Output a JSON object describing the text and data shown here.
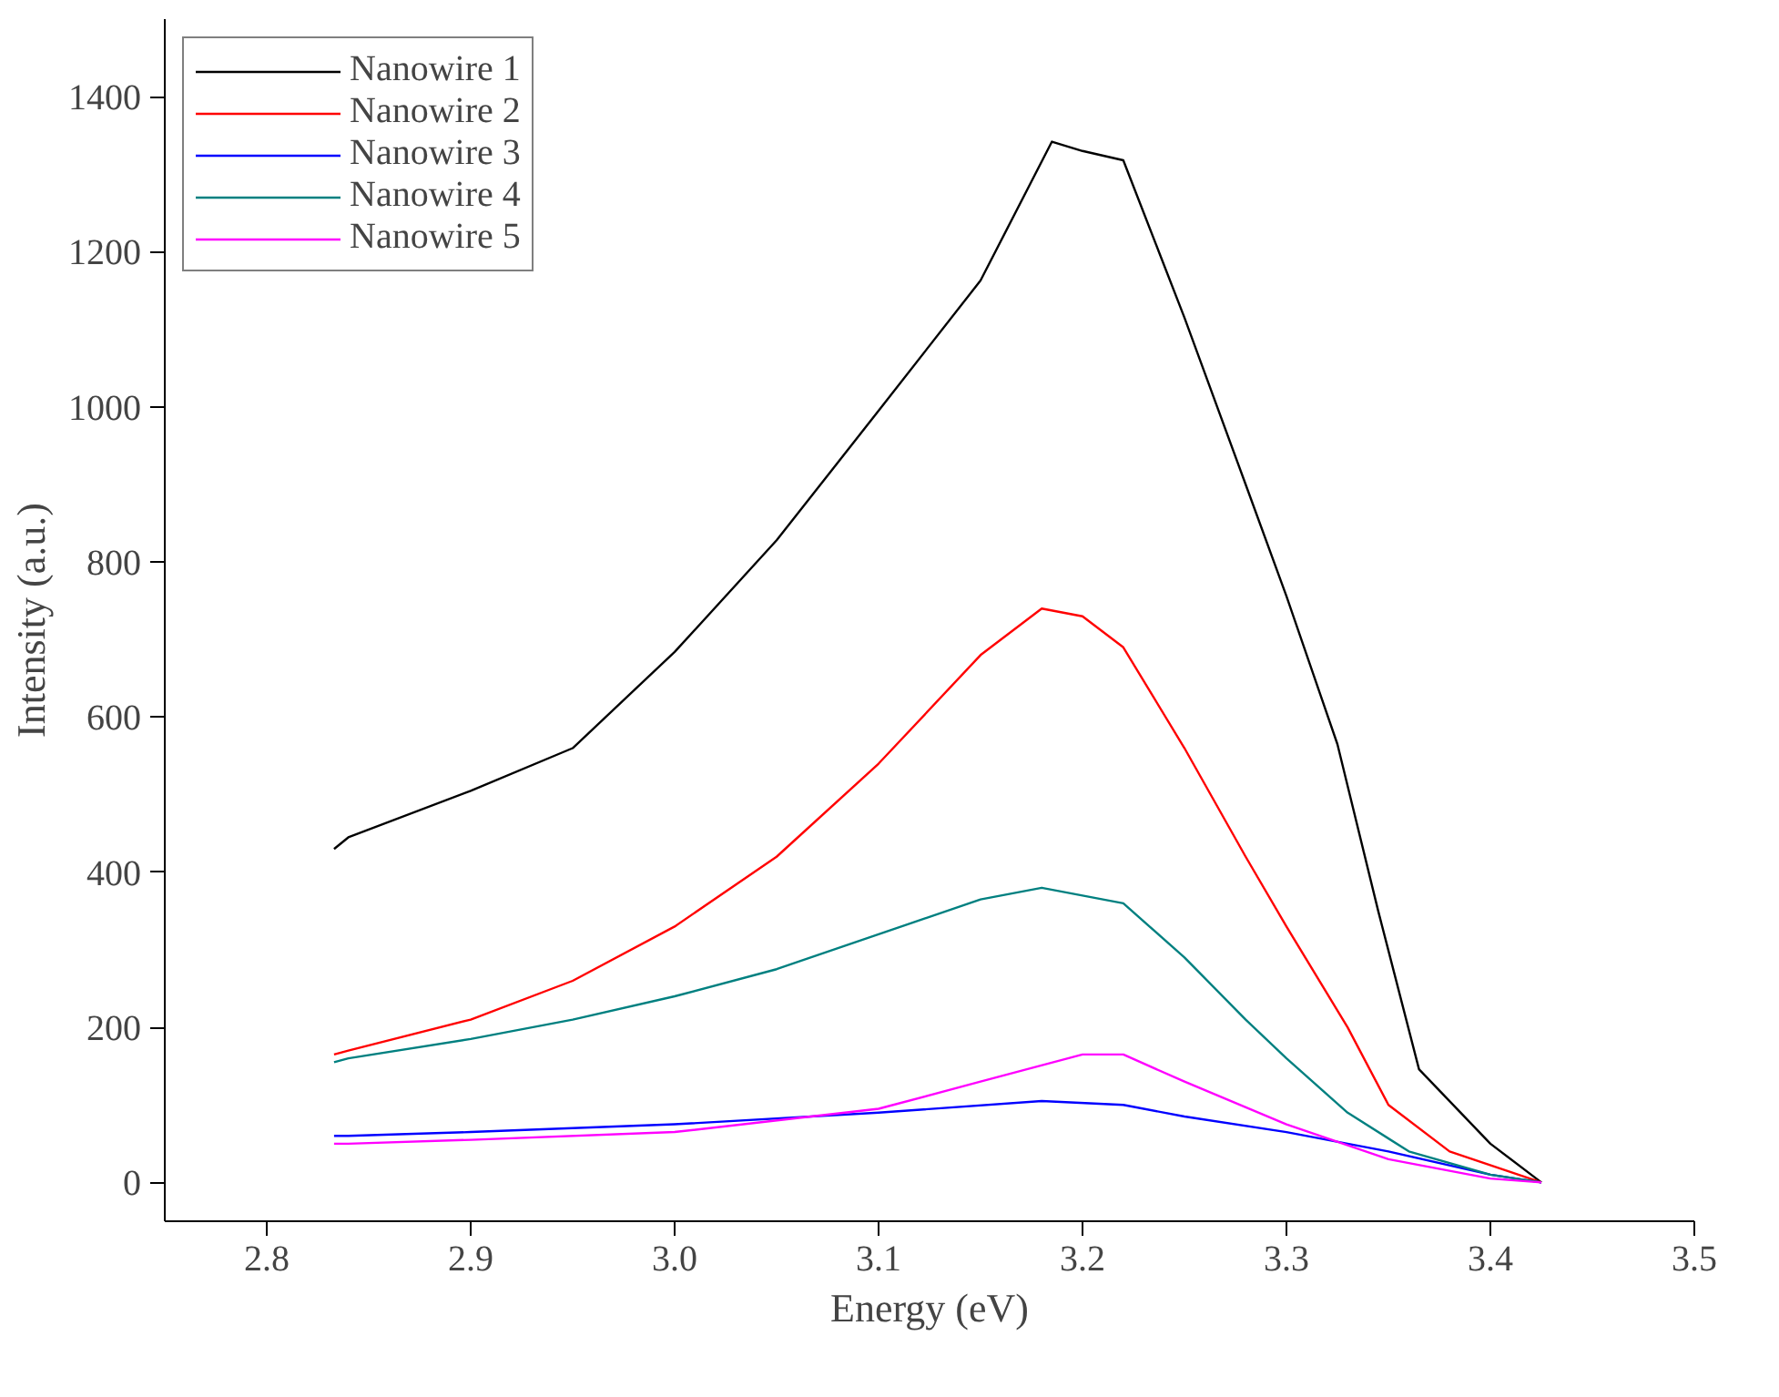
{
  "chart_data": {
    "type": "line",
    "xlabel": "Energy (eV)",
    "ylabel": "Intensity (a.u.)",
    "xlim": [
      2.75,
      3.5
    ],
    "ylim": [
      -50,
      1500
    ],
    "xticks": [
      {
        "value": 2.8,
        "label": "2.8"
      },
      {
        "value": 2.9,
        "label": "2.9"
      },
      {
        "value": 3.0,
        "label": "3.0"
      },
      {
        "value": 3.1,
        "label": "3.1"
      },
      {
        "value": 3.2,
        "label": "3.2"
      },
      {
        "value": 3.3,
        "label": "3.3"
      },
      {
        "value": 3.4,
        "label": "3.4"
      },
      {
        "value": 3.5,
        "label": "3.5"
      }
    ],
    "yticks": [
      0,
      200,
      400,
      600,
      800,
      1000,
      1200,
      1400
    ],
    "grid": false,
    "legend": "top left",
    "marker": "none",
    "line_style": "solid",
    "series": [
      {
        "name": "Nanowire 1",
        "color": "#000000",
        "x": [
          2.833,
          2.84,
          2.9,
          2.95,
          3.0,
          3.05,
          3.1,
          3.15,
          3.185,
          3.2,
          3.22,
          3.25,
          3.28,
          3.3,
          3.325,
          3.345,
          3.365,
          3.4,
          3.425
        ],
        "values": [
          430,
          445,
          505,
          560,
          684,
          828,
          995,
          1163,
          1342,
          1330,
          1318,
          1115,
          900,
          756,
          565,
          350,
          146,
          50,
          0
        ]
      },
      {
        "name": "Nanowire 2",
        "color": "#ff0000",
        "x": [
          2.833,
          2.84,
          2.9,
          2.95,
          3.0,
          3.05,
          3.1,
          3.15,
          3.18,
          3.2,
          3.22,
          3.25,
          3.28,
          3.3,
          3.33,
          3.35,
          3.38,
          3.425
        ],
        "values": [
          165,
          170,
          210,
          260,
          330,
          420,
          540,
          680,
          740,
          730,
          690,
          560,
          420,
          330,
          200,
          100,
          40,
          0
        ]
      },
      {
        "name": "Nanowire 3",
        "color": "#0000ff",
        "x": [
          2.833,
          2.84,
          2.9,
          3.0,
          3.1,
          3.18,
          3.22,
          3.25,
          3.3,
          3.35,
          3.4,
          3.425
        ],
        "values": [
          60,
          60,
          65,
          75,
          90,
          105,
          100,
          85,
          65,
          40,
          10,
          0
        ]
      },
      {
        "name": "Nanowire 4",
        "color": "#008080",
        "x": [
          2.833,
          2.84,
          2.9,
          2.95,
          3.0,
          3.05,
          3.1,
          3.15,
          3.18,
          3.22,
          3.25,
          3.28,
          3.3,
          3.33,
          3.36,
          3.4,
          3.425
        ],
        "values": [
          155,
          160,
          185,
          210,
          240,
          275,
          320,
          365,
          380,
          360,
          290,
          210,
          160,
          90,
          40,
          10,
          0
        ]
      },
      {
        "name": "Nanowire 5",
        "color": "#ff00ff",
        "x": [
          2.833,
          2.84,
          2.9,
          3.0,
          3.1,
          3.15,
          3.2,
          3.22,
          3.25,
          3.3,
          3.35,
          3.4,
          3.425
        ],
        "values": [
          50,
          50,
          55,
          65,
          95,
          130,
          165,
          165,
          130,
          75,
          30,
          5,
          0
        ]
      }
    ]
  }
}
